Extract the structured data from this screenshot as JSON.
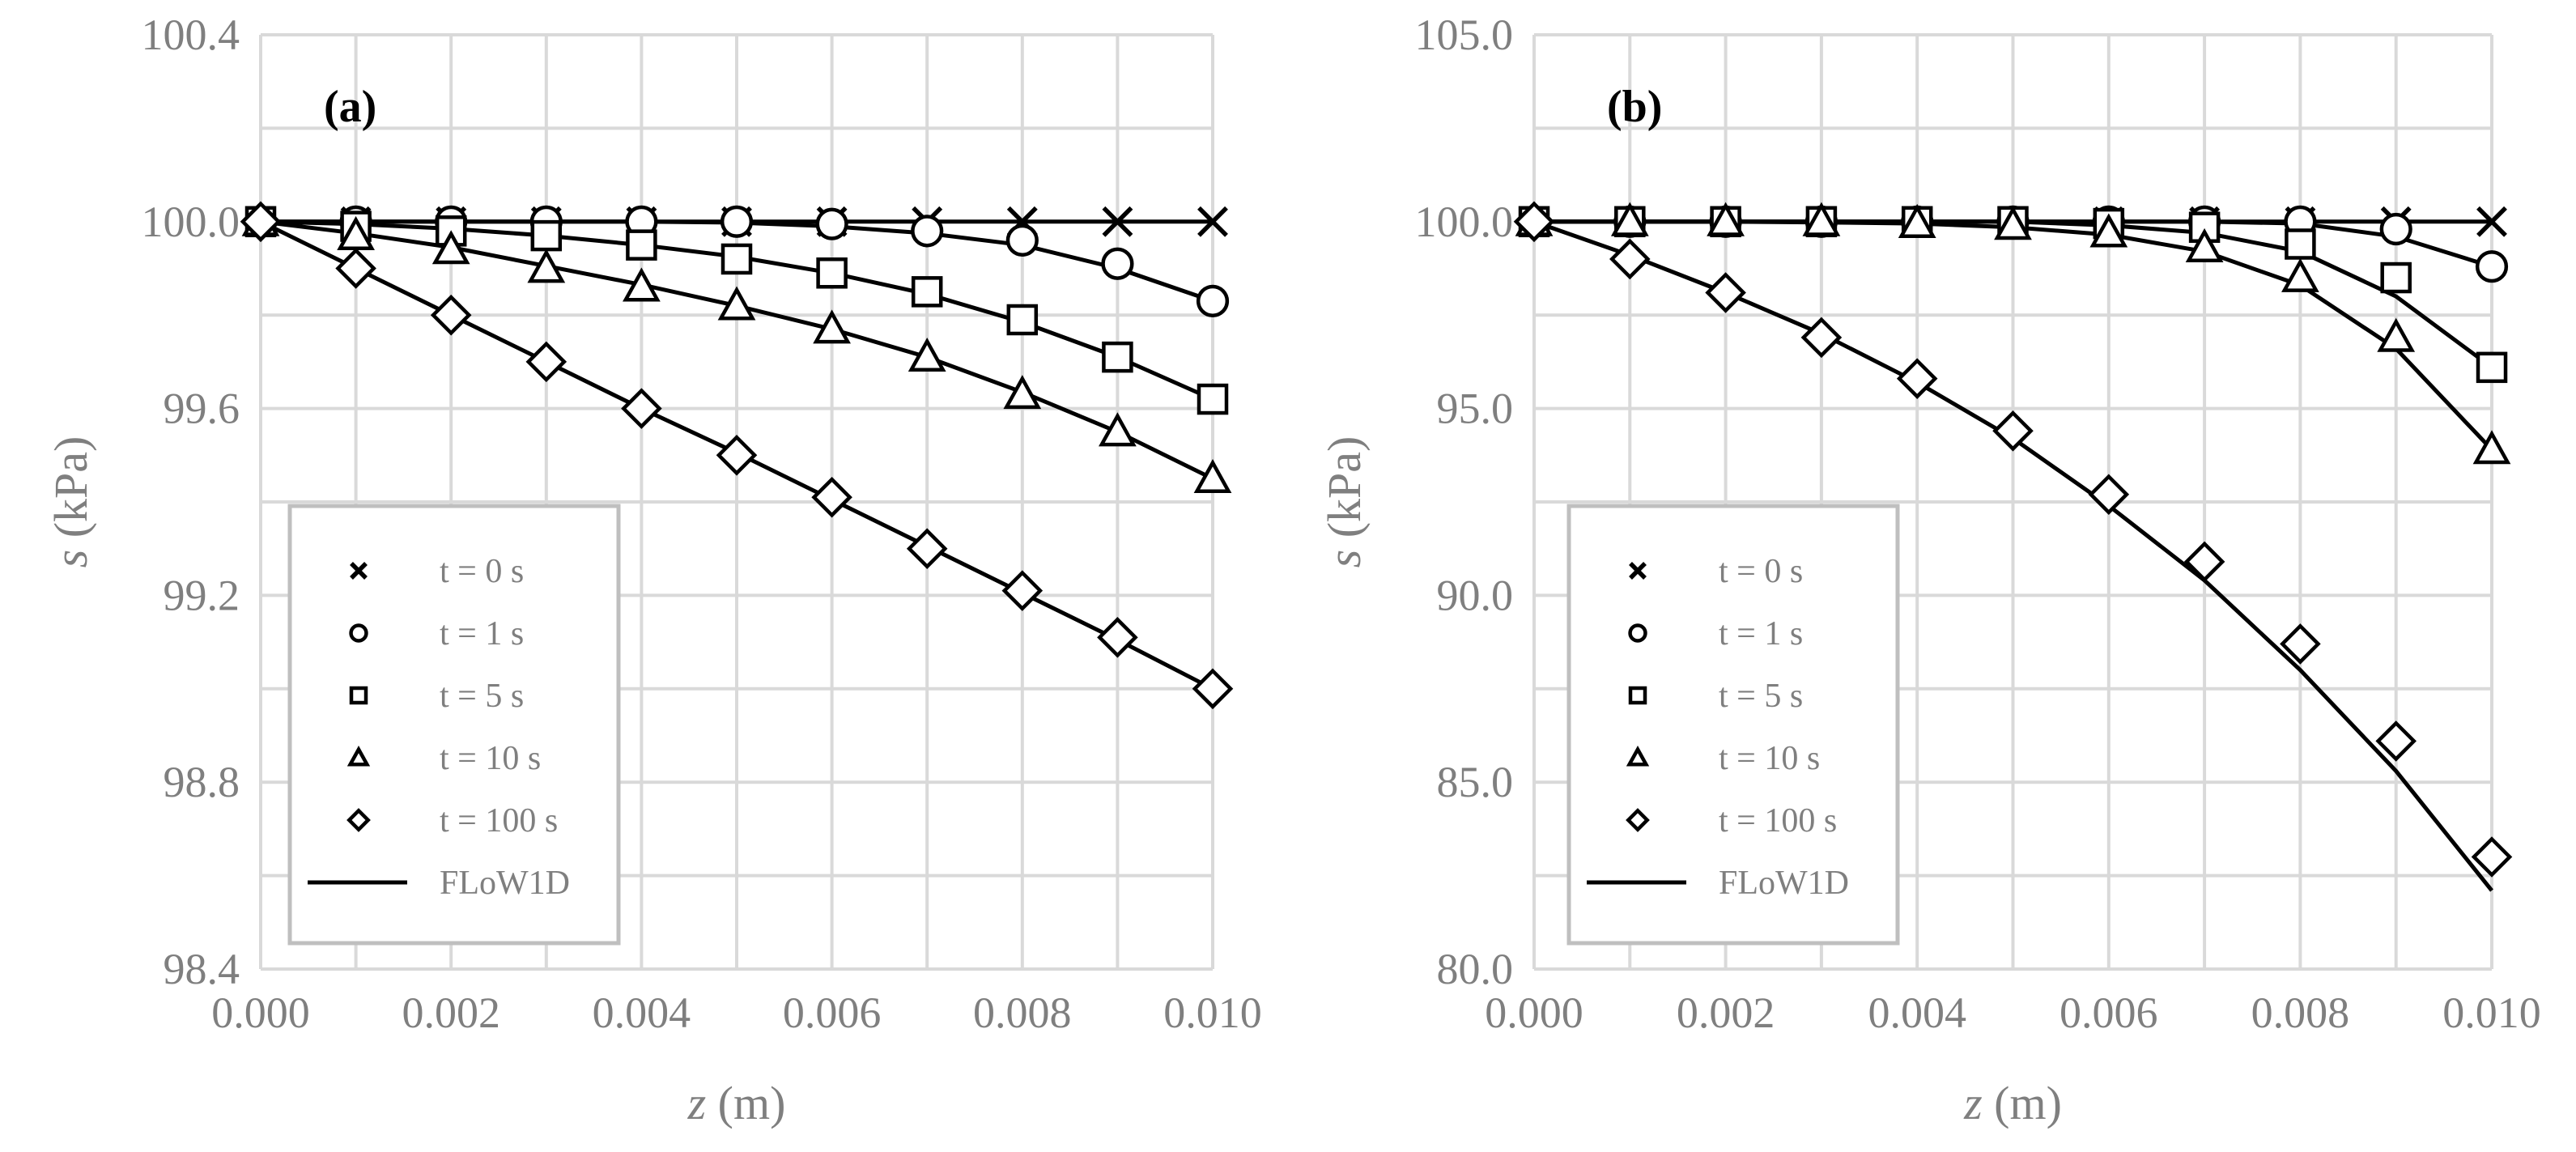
{
  "chart_data": [
    {
      "type": "line",
      "panel": "(a)",
      "xlabel_italic": "z",
      "xlabel_unit": " (m)",
      "ylabel_italic": "s",
      "ylabel_unit": " (kPa)",
      "xlim": [
        0,
        0.01
      ],
      "ylim": [
        98.4,
        100.4
      ],
      "x_ticks": [
        0,
        0.002,
        0.004,
        0.006,
        0.008,
        0.01
      ],
      "x_tick_labels": [
        "0.000",
        "0.002",
        "0.004",
        "0.006",
        "0.008",
        "0.010"
      ],
      "y_ticks": [
        98.4,
        98.8,
        99.2,
        99.6,
        100.0,
        100.4
      ],
      "y_tick_labels": [
        "98.4",
        "98.8",
        "99.2",
        "99.6",
        "100.0",
        "100.4"
      ],
      "x_minor_grid": [
        0.001,
        0.003,
        0.005,
        0.007,
        0.009
      ],
      "y_minor_grid": [
        98.6,
        99.0,
        99.4,
        99.8,
        100.2
      ],
      "x": [
        0,
        0.001,
        0.002,
        0.003,
        0.004,
        0.005,
        0.006,
        0.007,
        0.008,
        0.009,
        0.01
      ],
      "series": [
        {
          "name": "t = 0 s",
          "marker": "x",
          "values": [
            100.0,
            100.0,
            100.0,
            100.0,
            100.0,
            100.0,
            100.0,
            100.0,
            100.0,
            100.0,
            100.0
          ],
          "line": [
            100.0,
            100.0,
            100.0,
            100.0,
            100.0,
            100.0,
            100.0,
            100.0,
            100.0,
            100.0,
            100.0
          ]
        },
        {
          "name": "t = 1 s",
          "marker": "circle",
          "values": [
            100.0,
            100.0,
            100.0,
            100.0,
            100.0,
            100.0,
            99.995,
            99.98,
            99.96,
            99.91,
            99.83
          ],
          "line": [
            100.0,
            100.0,
            100.0,
            100.0,
            100.0,
            99.998,
            99.99,
            99.975,
            99.95,
            99.9,
            99.83
          ]
        },
        {
          "name": "t = 5 s",
          "marker": "square",
          "values": [
            100.0,
            99.99,
            99.98,
            99.97,
            99.95,
            99.92,
            99.89,
            99.85,
            99.79,
            99.71,
            99.62
          ],
          "line": [
            100.0,
            99.995,
            99.985,
            99.97,
            99.95,
            99.925,
            99.89,
            99.845,
            99.785,
            99.71,
            99.62
          ]
        },
        {
          "name": "t = 10 s",
          "marker": "triangle",
          "values": [
            100.0,
            99.97,
            99.94,
            99.9,
            99.86,
            99.82,
            99.77,
            99.71,
            99.63,
            99.55,
            99.45
          ],
          "line": [
            100.0,
            99.975,
            99.945,
            99.905,
            99.865,
            99.82,
            99.77,
            99.71,
            99.635,
            99.55,
            99.45
          ]
        },
        {
          "name": "t = 100 s",
          "marker": "diamond",
          "values": [
            100.0,
            99.9,
            99.8,
            99.7,
            99.6,
            99.5,
            99.41,
            99.3,
            99.21,
            99.11,
            99.0
          ],
          "line": [
            100.0,
            99.9,
            99.8,
            99.7,
            99.6,
            99.505,
            99.405,
            99.305,
            99.205,
            99.105,
            99.0
          ]
        }
      ],
      "legend": {
        "placement": "bottom-left",
        "line_label": "FLoW1D"
      }
    },
    {
      "type": "line",
      "panel": "(b)",
      "xlabel_italic": "z",
      "xlabel_unit": " (m)",
      "ylabel_italic": "s",
      "ylabel_unit": " (kPa)",
      "xlim": [
        0,
        0.01
      ],
      "ylim": [
        80.0,
        105.0
      ],
      "x_ticks": [
        0,
        0.002,
        0.004,
        0.006,
        0.008,
        0.01
      ],
      "x_tick_labels": [
        "0.000",
        "0.002",
        "0.004",
        "0.006",
        "0.008",
        "0.010"
      ],
      "y_ticks": [
        80.0,
        85.0,
        90.0,
        95.0,
        100.0,
        105.0
      ],
      "y_tick_labels": [
        "80.0",
        "85.0",
        "90.0",
        "95.0",
        "100.0",
        "105.0"
      ],
      "x_minor_grid": [
        0.001,
        0.003,
        0.005,
        0.007,
        0.009
      ],
      "y_minor_grid": [
        82.5,
        87.5,
        92.5,
        97.5,
        102.5
      ],
      "x": [
        0,
        0.001,
        0.002,
        0.003,
        0.004,
        0.005,
        0.006,
        0.007,
        0.008,
        0.009,
        0.01
      ],
      "series": [
        {
          "name": "t = 0 s",
          "marker": "x",
          "values": [
            100.0,
            100.0,
            100.0,
            100.0,
            100.0,
            100.0,
            100.0,
            100.0,
            100.0,
            100.0,
            100.0
          ],
          "line": [
            100.0,
            100.0,
            100.0,
            100.0,
            100.0,
            100.0,
            100.0,
            100.0,
            100.0,
            100.0,
            100.0
          ]
        },
        {
          "name": "t = 1 s",
          "marker": "circle",
          "values": [
            100.0,
            100.0,
            100.0,
            100.0,
            100.0,
            100.0,
            100.0,
            100.0,
            100.0,
            99.8,
            98.8
          ],
          "line": [
            100.0,
            100.0,
            100.0,
            100.0,
            100.0,
            100.0,
            100.0,
            100.0,
            99.95,
            99.6,
            98.8
          ]
        },
        {
          "name": "t = 5 s",
          "marker": "square",
          "values": [
            100.0,
            100.0,
            100.0,
            100.0,
            100.0,
            100.0,
            99.95,
            99.85,
            99.4,
            98.5,
            96.1
          ],
          "line": [
            100.0,
            100.0,
            100.0,
            100.0,
            100.0,
            100.0,
            99.9,
            99.7,
            99.2,
            98.0,
            96.1
          ]
        },
        {
          "name": "t = 10 s",
          "marker": "triangle",
          "values": [
            100.0,
            100.0,
            100.0,
            100.0,
            99.95,
            99.9,
            99.7,
            99.3,
            98.5,
            96.9,
            93.9
          ],
          "line": [
            100.0,
            100.0,
            100.0,
            99.98,
            99.95,
            99.85,
            99.65,
            99.2,
            98.3,
            96.6,
            93.9
          ]
        },
        {
          "name": "t = 100 s",
          "marker": "diamond",
          "values": [
            100.0,
            99.0,
            98.1,
            96.9,
            95.8,
            94.4,
            92.7,
            90.9,
            88.7,
            86.1,
            83.0
          ],
          "line": [
            100.0,
            99.1,
            98.1,
            97.0,
            95.7,
            94.2,
            92.4,
            90.4,
            88.0,
            85.3,
            82.1
          ]
        }
      ],
      "legend": {
        "placement": "bottom-left",
        "line_label": "FLoW1D"
      }
    }
  ]
}
